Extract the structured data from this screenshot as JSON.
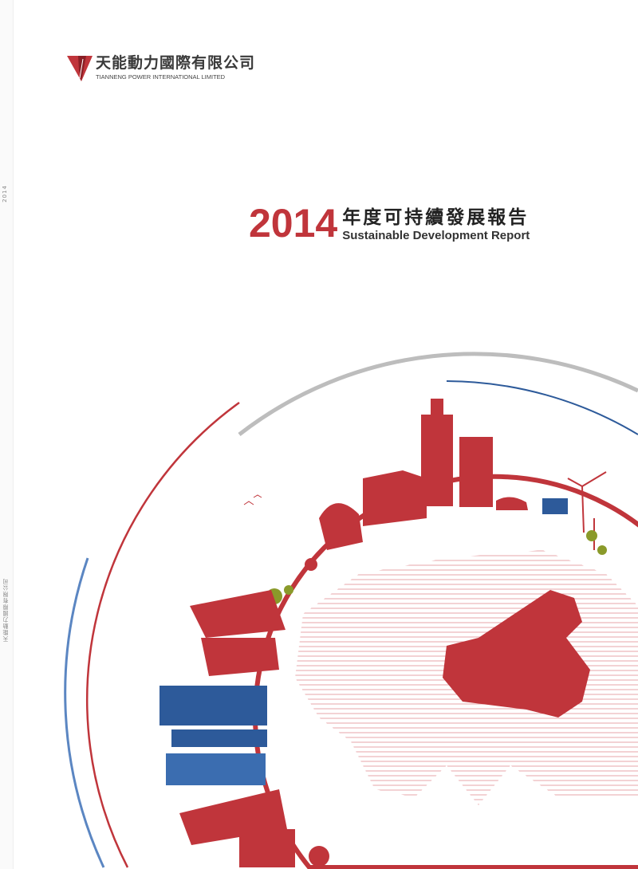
{
  "spine": {
    "year": "2014",
    "company": "天能動力國際有限公司"
  },
  "logo": {
    "name_cn": "天能動力國際有限公司",
    "name_en": "TIANNENG POWER INTERNATIONAL LIMITED",
    "color": "#c0353b"
  },
  "title": {
    "year": "2014",
    "title_cn": "年度可持續發展報告",
    "title_en": "Sustainable Development Report"
  },
  "colors": {
    "red": "#c0353b",
    "blue": "#2d5a9a",
    "gray": "#bbbbbb"
  }
}
